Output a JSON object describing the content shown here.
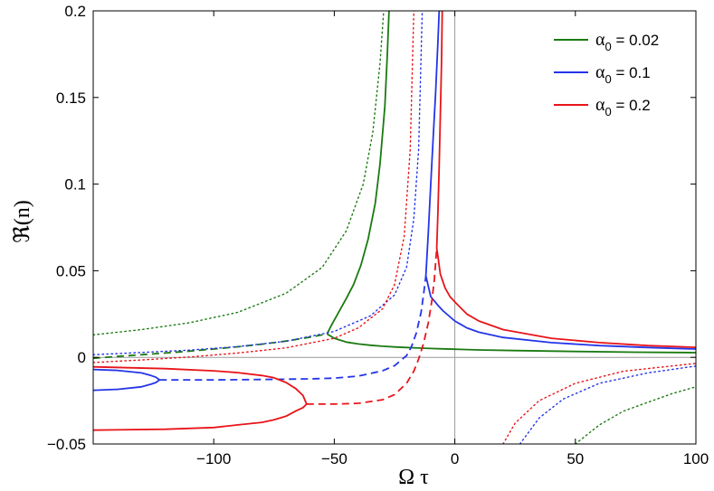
{
  "chart_data": {
    "type": "line",
    "xlabel": "Ω τ",
    "ylabel": "ℜ(n)",
    "xlim": [
      -150,
      100
    ],
    "ylim": [
      -0.05,
      0.2
    ],
    "xticks": [
      -100,
      -50,
      0,
      50,
      100
    ],
    "yticks": [
      -0.05,
      0,
      0.05,
      0.1,
      0.15,
      0.2
    ],
    "xtick_labels": [
      "−100",
      "−50",
      "0",
      "50",
      "100"
    ],
    "ytick_labels": [
      "−0.05",
      "0",
      "0.05",
      "0.1",
      "0.15",
      "0.2"
    ],
    "grid": false,
    "legend_position": "top-right",
    "zero_lines": true,
    "colors": {
      "green": "#1b7a12",
      "blue": "#2435e8",
      "red": "#e8141a"
    },
    "legend": [
      {
        "label_main": "α",
        "label_sub": "0",
        "label_rest": " = 0.02",
        "color": "#1b7a12"
      },
      {
        "label_main": "α",
        "label_sub": "0",
        "label_rest": " = 0.1",
        "color": "#2435e8"
      },
      {
        "label_main": "α",
        "label_sub": "0",
        "label_rest": " = 0.2",
        "color": "#e8141a"
      }
    ],
    "series": [
      {
        "color": "#1b7a12",
        "style": "solid",
        "x": [
          -53,
          -51,
          -49,
          -47,
          -45,
          -42,
          -39,
          -36,
          -33,
          -31,
          -29,
          -28,
          -27.3
        ],
        "y": [
          0.0135,
          0.019,
          0.024,
          0.029,
          0.034,
          0.042,
          0.053,
          0.068,
          0.089,
          0.112,
          0.145,
          0.175,
          0.2
        ]
      },
      {
        "color": "#1b7a12",
        "style": "solid",
        "x": [
          -53,
          -50,
          -45,
          -40,
          -35,
          -30,
          -25,
          -20,
          -15,
          -10,
          -5,
          0,
          10,
          25,
          50,
          75,
          100
        ],
        "y": [
          0.0135,
          0.011,
          0.0088,
          0.0077,
          0.007,
          0.0064,
          0.006,
          0.0057,
          0.0054,
          0.0051,
          0.0049,
          0.0047,
          0.0043,
          0.0039,
          0.0034,
          0.003,
          0.0027
        ]
      },
      {
        "color": "#1b7a12",
        "style": "dashed",
        "x": [
          -150,
          -140,
          -130,
          -120,
          -110,
          -100,
          -90,
          -80,
          -70,
          -60,
          -53
        ],
        "y": [
          -0.0005,
          0.0005,
          0.0015,
          0.0025,
          0.0036,
          0.0048,
          0.0061,
          0.0076,
          0.0094,
          0.0117,
          0.0135
        ]
      },
      {
        "color": "#1b7a12",
        "style": "dotted",
        "x": [
          -150,
          -130,
          -110,
          -90,
          -70,
          -55,
          -45,
          -38,
          -34,
          -31,
          -29.5
        ],
        "y": [
          0.013,
          0.016,
          0.02,
          0.026,
          0.037,
          0.052,
          0.073,
          0.1,
          0.13,
          0.17,
          0.2
        ]
      },
      {
        "color": "#1b7a12",
        "style": "dotted",
        "x": [
          50,
          60,
          70,
          80,
          90,
          100
        ],
        "y": [
          -0.05,
          -0.039,
          -0.031,
          -0.026,
          -0.021,
          -0.017
        ]
      },
      {
        "color": "#2435e8",
        "style": "solid",
        "x": [
          -150,
          -140,
          -130,
          -126,
          -124,
          -122.5
        ],
        "y": [
          -0.007,
          -0.0075,
          -0.009,
          -0.0105,
          -0.0115,
          -0.013
        ]
      },
      {
        "color": "#2435e8",
        "style": "solid",
        "x": [
          -150,
          -140,
          -130,
          -126,
          -124,
          -122.5
        ],
        "y": [
          -0.019,
          -0.0185,
          -0.017,
          -0.0155,
          -0.0145,
          -0.013
        ]
      },
      {
        "color": "#2435e8",
        "style": "dashed",
        "x": [
          -122.5,
          -100,
          -80,
          -60,
          -50,
          -40,
          -30,
          -25,
          -20,
          -18,
          -16,
          -14,
          -13,
          -12
        ],
        "y": [
          -0.013,
          -0.013,
          -0.0128,
          -0.0124,
          -0.012,
          -0.0108,
          -0.0078,
          -0.0048,
          0.001,
          0.006,
          0.014,
          0.026,
          0.036,
          0.047
        ]
      },
      {
        "color": "#2435e8",
        "style": "solid",
        "x": [
          -12,
          -11,
          -10,
          -9,
          -8,
          -7,
          -6.5
        ],
        "y": [
          0.047,
          0.072,
          0.1,
          0.126,
          0.152,
          0.183,
          0.2
        ]
      },
      {
        "color": "#2435e8",
        "style": "solid",
        "x": [
          -12,
          -10,
          -7,
          -5,
          0,
          5,
          10,
          20,
          40,
          60,
          80,
          100
        ],
        "y": [
          0.047,
          0.035,
          0.03,
          0.027,
          0.021,
          0.017,
          0.0145,
          0.0115,
          0.0085,
          0.0068,
          0.0057,
          0.0048
        ]
      },
      {
        "color": "#2435e8",
        "style": "dotted",
        "x": [
          -150,
          -130,
          -110,
          -90,
          -70,
          -50,
          -35,
          -25,
          -20,
          -17,
          -15,
          -13.5
        ],
        "y": [
          0.0015,
          0.0028,
          0.0042,
          0.0062,
          0.0093,
          0.015,
          0.024,
          0.036,
          0.052,
          0.08,
          0.12,
          0.2
        ]
      },
      {
        "color": "#2435e8",
        "style": "dotted",
        "x": [
          27,
          35,
          45,
          60,
          80,
          100
        ],
        "y": [
          -0.05,
          -0.035,
          -0.024,
          -0.015,
          -0.009,
          -0.005
        ]
      },
      {
        "color": "#e8141a",
        "style": "solid",
        "x": [
          -150,
          -120,
          -100,
          -90,
          -80,
          -75,
          -70,
          -66,
          -63,
          -61.5
        ],
        "y": [
          -0.0055,
          -0.0065,
          -0.0078,
          -0.0088,
          -0.0105,
          -0.0118,
          -0.0145,
          -0.018,
          -0.022,
          -0.027
        ]
      },
      {
        "color": "#e8141a",
        "style": "solid",
        "x": [
          -150,
          -120,
          -100,
          -90,
          -80,
          -75,
          -70,
          -66,
          -63,
          -61.5
        ],
        "y": [
          -0.042,
          -0.0415,
          -0.0405,
          -0.039,
          -0.0375,
          -0.036,
          -0.034,
          -0.031,
          -0.029,
          -0.027
        ]
      },
      {
        "color": "#e8141a",
        "style": "dashed",
        "x": [
          -61.5,
          -50,
          -40,
          -30,
          -25,
          -20,
          -17,
          -15,
          -13,
          -11,
          -9.5,
          -8.5,
          -8,
          -7.5
        ],
        "y": [
          -0.027,
          -0.027,
          -0.0265,
          -0.0245,
          -0.0215,
          -0.015,
          -0.008,
          -0.001,
          0.008,
          0.02,
          0.033,
          0.045,
          0.054,
          0.063
        ]
      },
      {
        "color": "#e8141a",
        "style": "solid",
        "x": [
          -7.5,
          -7,
          -6.5,
          -6,
          -5.5,
          -5.2
        ],
        "y": [
          0.063,
          0.085,
          0.11,
          0.14,
          0.17,
          0.2
        ]
      },
      {
        "color": "#e8141a",
        "style": "solid",
        "x": [
          -7.5,
          -7,
          -6,
          -4,
          -2,
          0,
          5,
          10,
          20,
          40,
          60,
          80,
          100
        ],
        "y": [
          0.063,
          0.058,
          0.048,
          0.04,
          0.035,
          0.032,
          0.025,
          0.021,
          0.016,
          0.011,
          0.0085,
          0.0068,
          0.0058
        ]
      },
      {
        "color": "#e8141a",
        "style": "dotted",
        "x": [
          -150,
          -130,
          -110,
          -90,
          -70,
          -50,
          -40,
          -30,
          -25,
          -21,
          -18.5,
          -17
        ],
        "y": [
          -0.003,
          -0.0015,
          0.0002,
          0.0025,
          0.0055,
          0.011,
          0.017,
          0.028,
          0.042,
          0.07,
          0.12,
          0.2
        ]
      },
      {
        "color": "#e8141a",
        "style": "dotted",
        "x": [
          20,
          25,
          35,
          50,
          70,
          100
        ],
        "y": [
          -0.05,
          -0.038,
          -0.025,
          -0.015,
          -0.008,
          -0.0035
        ]
      }
    ]
  }
}
